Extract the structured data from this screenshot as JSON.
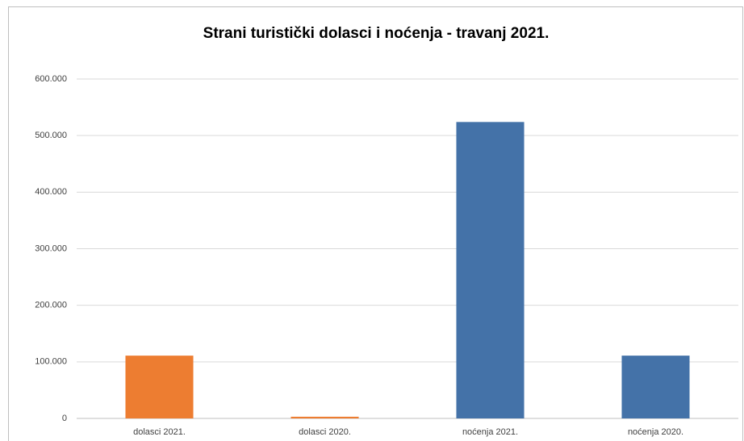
{
  "chart_data": {
    "type": "bar",
    "title": "Strani turistički dolasci i noćenja - travanj 2021.",
    "categories": [
      "dolasci 2021.",
      "dolasci 2020.",
      "noćenja 2021.",
      "noćenja 2020."
    ],
    "values": [
      111000,
      3000,
      524000,
      111000
    ],
    "colors": [
      "#ed7d31",
      "#ed7d31",
      "#4472a8",
      "#4472a8"
    ],
    "ylim": [
      0,
      600000
    ],
    "yticks": [
      0,
      {
        "value": 100000,
        "label": "100.000"
      },
      {
        "value": 200000,
        "label": "200.000"
      },
      {
        "value": 300000,
        "label": "300.000"
      },
      {
        "value": 400000,
        "label": "400.000"
      },
      {
        "value": 500000,
        "label": "500.000"
      },
      {
        "value": 600000,
        "label": "600.000"
      }
    ],
    "grid": true
  }
}
